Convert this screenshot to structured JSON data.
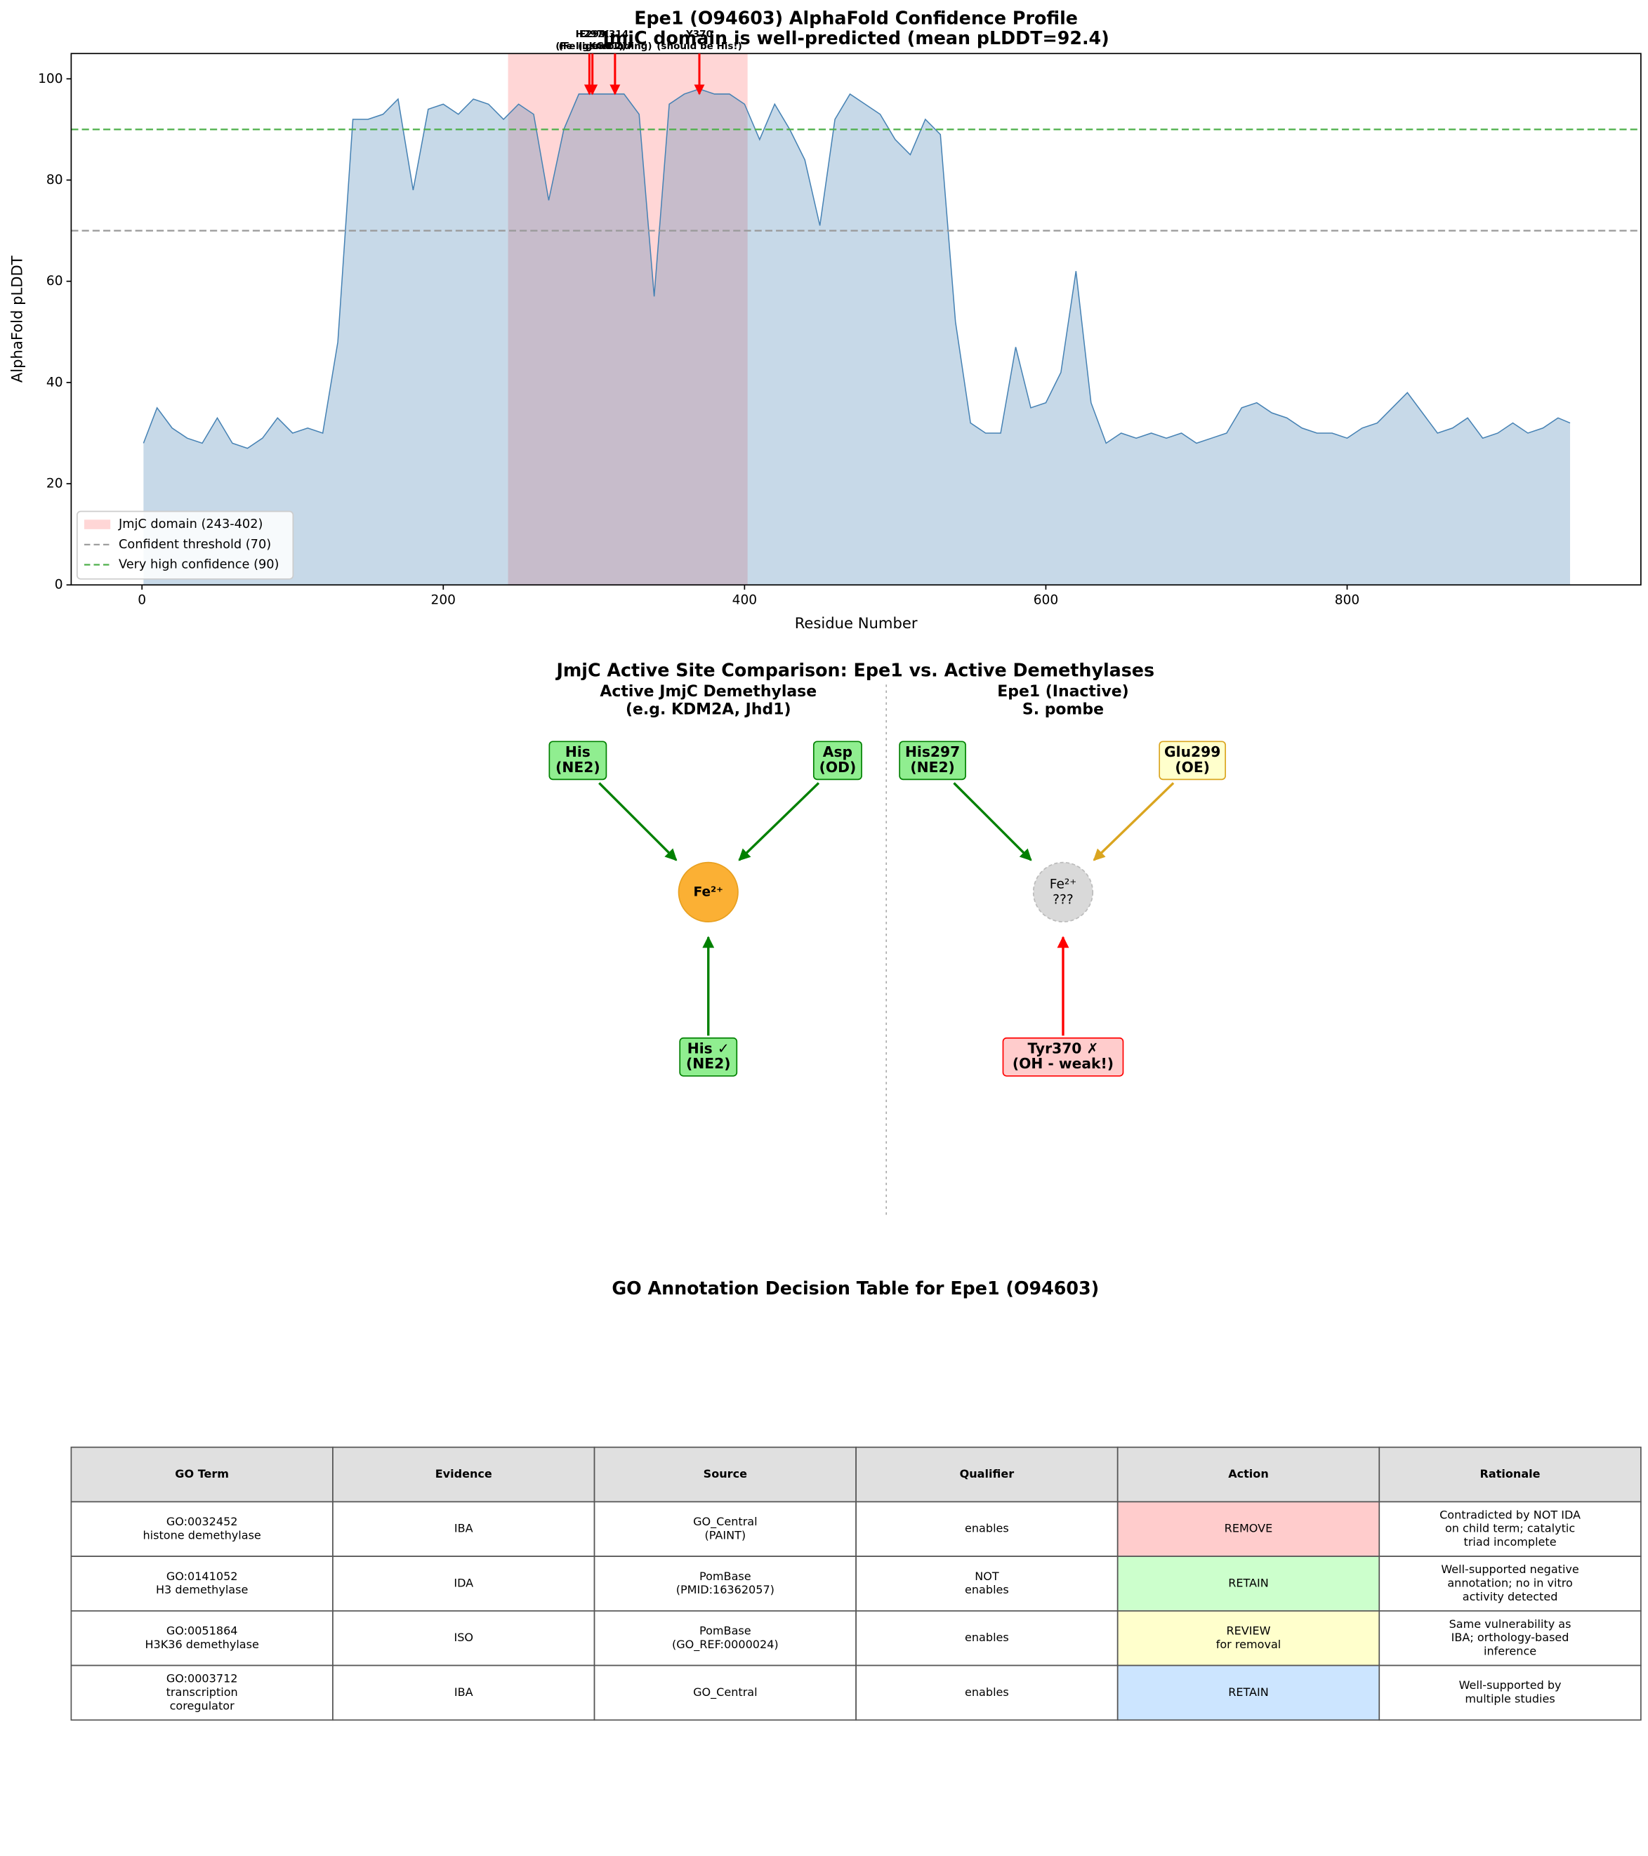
{
  "chart_data": {
    "type": "area",
    "title": "Epe1 (O94603) AlphaFold Confidence Profile",
    "subtitle": "JmjC domain is well-predicted (mean pLDDT=92.4)",
    "x_label": "Residue Number",
    "y_label": "AlphaFold pLDDT",
    "x": [
      1,
      10,
      20,
      30,
      40,
      50,
      60,
      70,
      80,
      90,
      100,
      110,
      120,
      130,
      140,
      150,
      160,
      170,
      180,
      190,
      200,
      210,
      220,
      230,
      240,
      250,
      260,
      270,
      280,
      290,
      300,
      310,
      320,
      330,
      340,
      350,
      360,
      370,
      380,
      390,
      400,
      410,
      420,
      430,
      440,
      450,
      460,
      470,
      480,
      490,
      500,
      510,
      520,
      530,
      540,
      550,
      560,
      570,
      580,
      590,
      600,
      610,
      620,
      630,
      640,
      650,
      660,
      670,
      680,
      690,
      700,
      710,
      720,
      730,
      740,
      750,
      760,
      770,
      780,
      790,
      800,
      810,
      820,
      830,
      840,
      850,
      860,
      870,
      880,
      890,
      900,
      910,
      920,
      930,
      940,
      948
    ],
    "values": [
      28,
      35,
      31,
      29,
      28,
      33,
      28,
      27,
      29,
      33,
      30,
      31,
      30,
      48,
      92,
      92,
      93,
      96,
      78,
      94,
      95,
      93,
      96,
      95,
      92,
      95,
      93,
      76,
      90,
      97,
      97,
      97,
      97,
      93,
      57,
      95,
      97,
      98,
      97,
      97,
      95,
      88,
      95,
      90,
      84,
      71,
      92,
      97,
      95,
      93,
      88,
      85,
      92,
      89,
      52,
      32,
      30,
      30,
      47,
      35,
      36,
      42,
      62,
      36,
      28,
      30,
      29,
      30,
      29,
      30,
      28,
      29,
      30,
      35,
      36,
      34,
      33,
      31,
      30,
      30,
      29,
      31,
      32,
      35,
      38,
      34,
      30,
      31,
      33,
      29,
      30,
      32,
      30,
      31,
      33,
      32
    ],
    "color": "#4682b4",
    "xlim": [
      -47,
      995
    ],
    "ylim": [
      0,
      105
    ],
    "xticks": [
      0,
      200,
      400,
      600,
      800
    ],
    "yticks": [
      0,
      20,
      40,
      60,
      80,
      100
    ],
    "spans": [
      {
        "name": "JmjC domain (243-402)",
        "start": 243,
        "end": 402,
        "color": "#ff9999"
      }
    ],
    "hlines": [
      {
        "name": "Confident threshold (70)",
        "value": 70,
        "color": "#999999"
      },
      {
        "name": "Very high confidence (90)",
        "value": 90,
        "color": "#4daf4a"
      }
    ],
    "annotations": [
      {
        "label": [
          "H297",
          "(Fe ligand 1)"
        ],
        "x": 297,
        "y": 97
      },
      {
        "label": [
          "E299",
          "(Fe ligand 2)"
        ],
        "x": 299,
        "y": 97
      },
      {
        "label": [
          "K314",
          "(αKG binding)"
        ],
        "x": 314,
        "y": 97
      },
      {
        "label": [
          "Y370",
          "(should be His!)"
        ],
        "x": 370,
        "y": 97
      }
    ],
    "annotation_color": "#ff0000",
    "legend": "lower left"
  },
  "diagram": {
    "title": "JmjC Active Site Comparison: Epe1 vs. Active Demethylases",
    "panels": [
      {
        "heading": [
          "Active JmjC Demethylase",
          "(e.g. KDM2A, Jhd1)"
        ],
        "heading_color": "#008000",
        "metal": [
          "Fe²⁺"
        ],
        "metal_color": "#fbb034",
        "ligands": [
          {
            "label": [
              "His",
              "(NE2)"
            ],
            "color": "#008000",
            "fill": "#90ee90"
          },
          {
            "label": [
              "Asp",
              "(OD)"
            ],
            "color": "#008000",
            "fill": "#90ee90"
          },
          {
            "label": [
              "His ✓",
              "(NE2)"
            ],
            "color": "#008000",
            "fill": "#90ee90"
          }
        ]
      },
      {
        "heading": [
          "Epe1 (Inactive)",
          "S. pombe"
        ],
        "heading_color": "#ff0000",
        "metal": [
          "Fe²⁺",
          "???"
        ],
        "metal_color": "#d9d9d9",
        "ligands": [
          {
            "label": [
              "His297",
              "(NE2)"
            ],
            "color": "#008000",
            "fill": "#90ee90"
          },
          {
            "label": [
              "Glu299",
              "(OE)"
            ],
            "color": "#daa520",
            "fill": "#ffffcc"
          },
          {
            "label": [
              "Tyr370 ✗",
              "(OH - weak!)"
            ],
            "color": "#ff0000",
            "fill": "#ffcccc"
          }
        ]
      }
    ]
  },
  "table": {
    "title": "GO Annotation Decision Table for Epe1 (O94603)",
    "header": [
      "GO Term",
      "Evidence",
      "Source",
      "Qualifier",
      "Action",
      "Rationale"
    ],
    "rows": [
      [
        [
          "GO:0032452",
          "histone demethylase"
        ],
        [
          "IBA"
        ],
        [
          "GO_Central",
          "(PAINT)"
        ],
        [
          "enables"
        ],
        [
          "REMOVE"
        ],
        [
          "Contradicted by NOT IDA",
          "on child term; catalytic",
          "triad incomplete"
        ]
      ],
      [
        [
          "GO:0141052",
          "H3 demethylase"
        ],
        [
          "IDA"
        ],
        [
          "PomBase",
          "(PMID:16362057)"
        ],
        [
          "NOT",
          "enables"
        ],
        [
          "RETAIN"
        ],
        [
          "Well-supported negative",
          "annotation; no in vitro",
          "activity detected"
        ]
      ],
      [
        [
          "GO:0051864",
          "H3K36 demethylase"
        ],
        [
          "ISO"
        ],
        [
          "PomBase",
          "(GO_REF:0000024)"
        ],
        [
          "enables"
        ],
        [
          "REVIEW",
          "for removal"
        ],
        [
          "Same vulnerability as",
          "IBA; orthology-based",
          "inference"
        ]
      ],
      [
        [
          "GO:0003712",
          "transcription",
          "coregulator"
        ],
        [
          "IBA"
        ],
        [
          "GO_Central"
        ],
        [
          "enables"
        ],
        [
          "RETAIN"
        ],
        [
          "Well-supported by",
          "multiple studies"
        ]
      ]
    ],
    "action_colors": [
      "#ffcccc",
      "#ccffcc",
      "#ffffcc",
      "#cce5ff"
    ]
  }
}
